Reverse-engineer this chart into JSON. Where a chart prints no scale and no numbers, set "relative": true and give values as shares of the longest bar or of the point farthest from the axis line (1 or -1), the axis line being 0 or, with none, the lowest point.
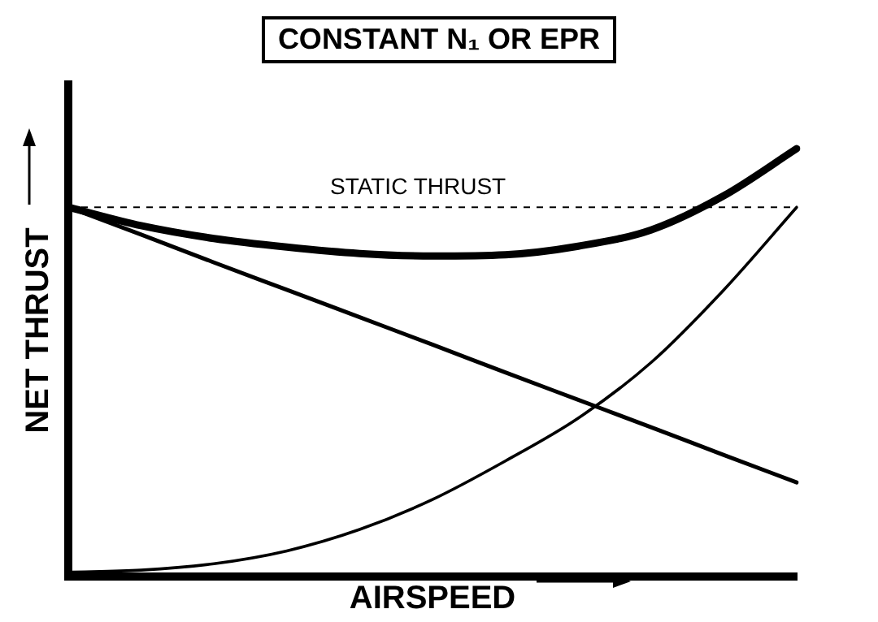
{
  "chart_data": {
    "type": "line",
    "title": "CONSTANT N₁ OR EPR",
    "xlabel": "AIRSPEED",
    "ylabel": "NET THRUST",
    "relative": true,
    "categories": [
      null,
      null,
      null,
      null,
      null,
      null,
      null,
      null,
      null,
      null,
      null
    ],
    "series": [
      {
        "color": "#000000",
        "values": [
          0.863,
          0.82,
          0.79,
          0.77,
          0.755,
          0.749,
          0.752,
          0.772,
          0.81,
          0.89,
          1.0
        ]
      },
      {
        "color": "#000000",
        "values": [
          0.863,
          0.799,
          0.734,
          0.67,
          0.606,
          0.542,
          0.477,
          0.413,
          0.349,
          0.284,
          0.22
        ]
      },
      {
        "color": "#000000",
        "values": [
          0.01,
          0.015,
          0.03,
          0.06,
          0.11,
          0.18,
          0.27,
          0.37,
          0.5,
          0.67,
          0.863
        ]
      }
    ],
    "ref_lines": [
      {
        "axis": "y",
        "value": 0.863,
        "label": "STATIC THRUST",
        "color": "#000000",
        "line_style": "dashed"
      }
    ],
    "grid": false,
    "legend": false,
    "marker": "none",
    "line_style": "solid"
  }
}
